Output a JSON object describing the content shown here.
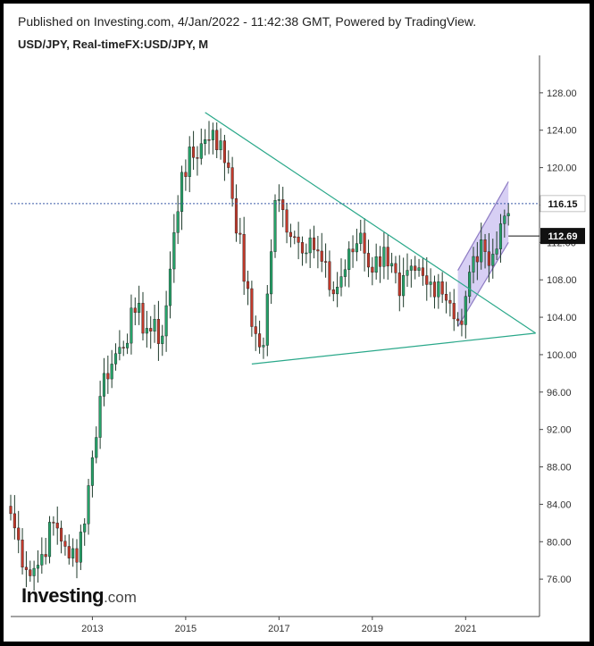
{
  "header": {
    "published": "Published on Investing.com, 4/Jan/2022 - 11:42:38 GMT, Powered by TradingView.",
    "symbol": "USD/JPY, Real-timeFX:USD/JPY, M"
  },
  "logo": {
    "name": "Investing",
    "suffix": ".com"
  },
  "colors": {
    "up": "#26a269",
    "down": "#c0392b",
    "trendline": "#2aa88a",
    "channel_fill": "#c9bff0",
    "channel_line": "#8e7cc3",
    "dotted_level": "#3b5ba9",
    "price_tag": "#111111",
    "level_tag": "#ffffff"
  },
  "chart_data": {
    "type": "candlestick",
    "title": "USD/JPY, Real-timeFX:USD/JPY, M",
    "interval": "monthly",
    "x_ticks": [
      "2013",
      "2015",
      "2017",
      "2019",
      "2021"
    ],
    "y_ticks": [
      "76.00",
      "80.00",
      "84.00",
      "88.00",
      "92.00",
      "96.00",
      "100.00",
      "104.00",
      "108.00",
      "112.00",
      "116.00",
      "120.00",
      "124.00",
      "128.00"
    ],
    "ylim": [
      72.0,
      132.0
    ],
    "xlim": [
      "2011-04",
      "2022-08"
    ],
    "current_price": {
      "value": 112.69,
      "label": "112.69"
    },
    "horizontal_level": {
      "value": 116.15,
      "label": "116.15",
      "style": "dotted"
    },
    "control_points": [
      {
        "date": "2011-04",
        "value": 83.0
      },
      {
        "date": "2011-08",
        "value": 77.0
      },
      {
        "date": "2011-11",
        "value": 77.5
      },
      {
        "date": "2012-03",
        "value": 82.0
      },
      {
        "date": "2012-06",
        "value": 79.5
      },
      {
        "date": "2012-09",
        "value": 77.8
      },
      {
        "date": "2012-12",
        "value": 86.0
      },
      {
        "date": "2013-04",
        "value": 98.0
      },
      {
        "date": "2013-06",
        "value": 99.0
      },
      {
        "date": "2013-12",
        "value": 104.5
      },
      {
        "date": "2014-04",
        "value": 102.5
      },
      {
        "date": "2014-07",
        "value": 102.0
      },
      {
        "date": "2014-12",
        "value": 119.5
      },
      {
        "date": "2015-06",
        "value": 123.0
      },
      {
        "date": "2015-08",
        "value": 124.0
      },
      {
        "date": "2015-12",
        "value": 120.0
      },
      {
        "date": "2016-06",
        "value": 103.0
      },
      {
        "date": "2016-09",
        "value": 101.0
      },
      {
        "date": "2016-12",
        "value": 116.5
      },
      {
        "date": "2017-06",
        "value": 112.0
      },
      {
        "date": "2017-09",
        "value": 112.5
      },
      {
        "date": "2018-03",
        "value": 106.5
      },
      {
        "date": "2018-10",
        "value": 113.0
      },
      {
        "date": "2019-01",
        "value": 108.8
      },
      {
        "date": "2019-04",
        "value": 111.5
      },
      {
        "date": "2019-08",
        "value": 106.3
      },
      {
        "date": "2019-12",
        "value": 109.0
      },
      {
        "date": "2020-03",
        "value": 107.5
      },
      {
        "date": "2020-06",
        "value": 107.8
      },
      {
        "date": "2020-09",
        "value": 105.5
      },
      {
        "date": "2020-12",
        "value": 103.2
      },
      {
        "date": "2021-03",
        "value": 110.5
      },
      {
        "date": "2021-06",
        "value": 111.0
      },
      {
        "date": "2021-09",
        "value": 111.3
      },
      {
        "date": "2021-10",
        "value": 114.0
      },
      {
        "date": "2021-12",
        "value": 115.1
      }
    ],
    "triangle": {
      "upper_trendline": [
        {
          "date": "2015-06",
          "value": 125.9
        },
        {
          "date": "2022-07",
          "value": 102.3
        }
      ],
      "lower_trendline": [
        {
          "date": "2016-06",
          "value": 99.0
        },
        {
          "date": "2022-07",
          "value": 102.3
        }
      ]
    },
    "rising_channel": {
      "upper": [
        {
          "date": "2020-11",
          "value": 109.0
        },
        {
          "date": "2021-12",
          "value": 118.5
        }
      ],
      "lower": [
        {
          "date": "2020-11",
          "value": 103.0
        },
        {
          "date": "2021-12",
          "value": 112.0
        }
      ]
    },
    "grid": false,
    "legend": "none"
  }
}
